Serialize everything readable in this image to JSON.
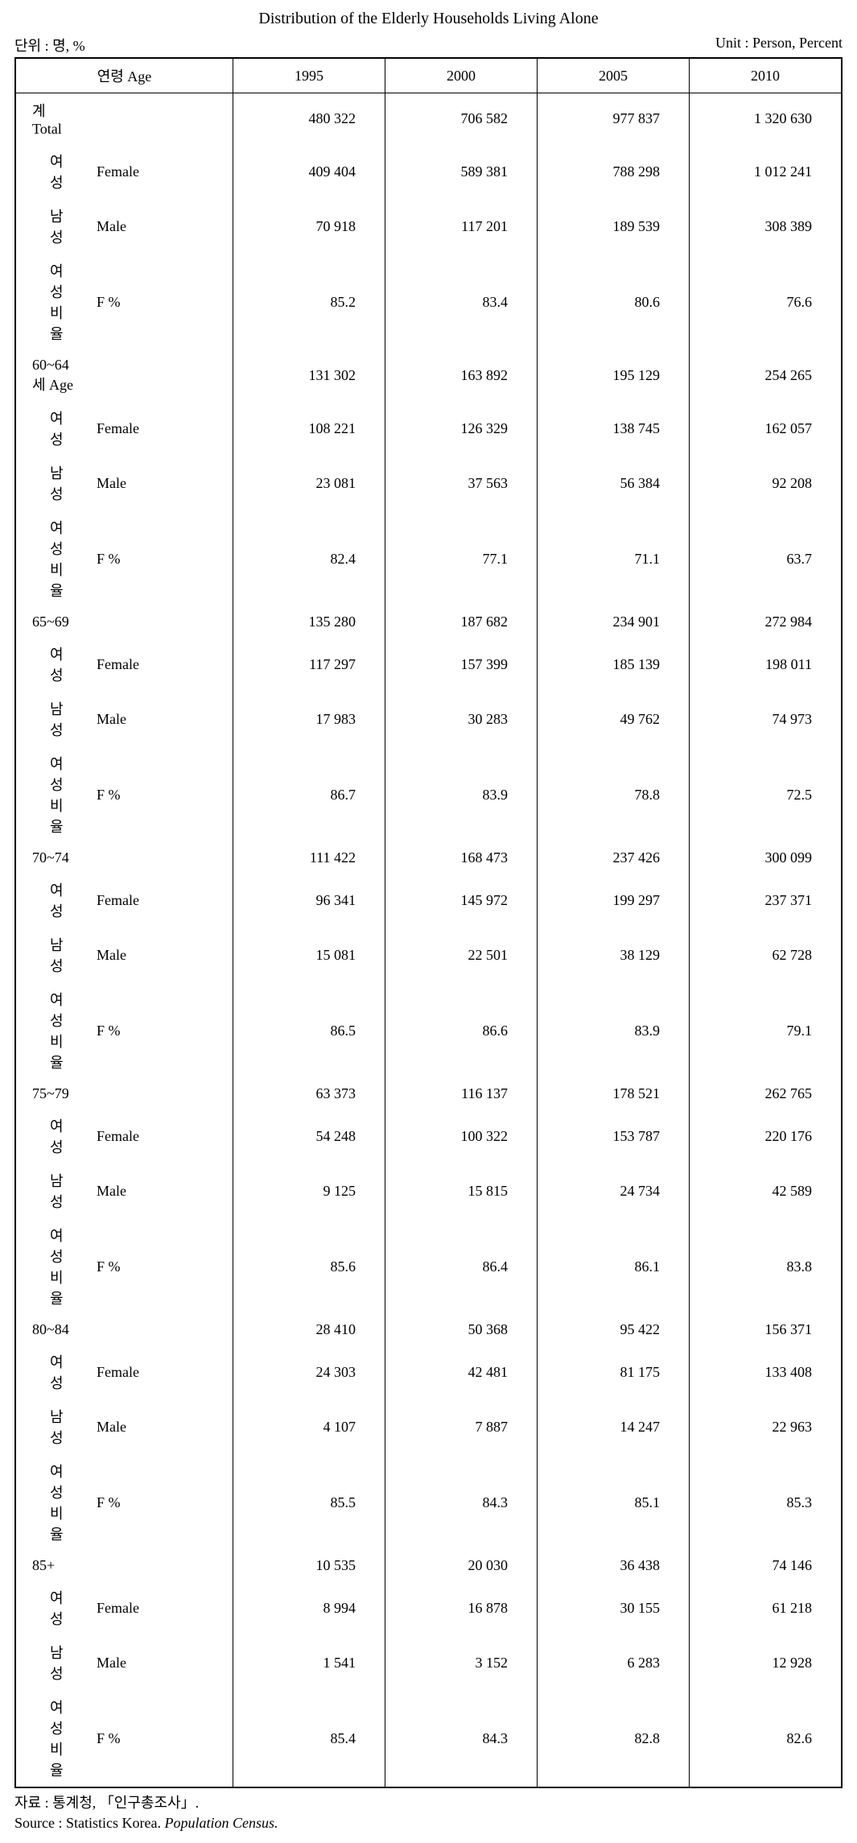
{
  "title": "Distribution of the Elderly Households Living Alone",
  "unit_left": "단위 : 명, %",
  "unit_right": "Unit : Person, Percent",
  "table": {
    "columns": {
      "age_header": "연령 Age",
      "years": [
        "1995",
        "2000",
        "2005",
        "2010"
      ]
    },
    "groups": [
      {
        "label_ko": "계 Total",
        "label_en": "",
        "totals": [
          "480 322",
          "706 582",
          "977 837",
          "1 320 630"
        ],
        "rows": [
          {
            "ko": "여성",
            "en": "Female",
            "vals": [
              "409 404",
              "589 381",
              "788 298",
              "1 012 241"
            ]
          },
          {
            "ko": "남성",
            "en": "Male",
            "vals": [
              "70 918",
              "117 201",
              "189 539",
              "308 389"
            ]
          },
          {
            "ko": "여성비율",
            "en": "F %",
            "vals": [
              "85.2",
              "83.4",
              "80.6",
              "76.6"
            ]
          }
        ]
      },
      {
        "label_ko": "60~64 세 Age",
        "label_en": "",
        "totals": [
          "131 302",
          "163 892",
          "195 129",
          "254 265"
        ],
        "rows": [
          {
            "ko": "여성",
            "en": "Female",
            "vals": [
              "108 221",
              "126 329",
              "138 745",
              "162 057"
            ]
          },
          {
            "ko": "남성",
            "en": "Male",
            "vals": [
              "23 081",
              "37 563",
              "56 384",
              "92 208"
            ]
          },
          {
            "ko": "여성비율",
            "en": "F %",
            "vals": [
              "82.4",
              "77.1",
              "71.1",
              "63.7"
            ]
          }
        ]
      },
      {
        "label_ko": "65~69",
        "label_en": "",
        "totals": [
          "135 280",
          "187 682",
          "234 901",
          "272 984"
        ],
        "rows": [
          {
            "ko": "여성",
            "en": "Female",
            "vals": [
              "117 297",
              "157 399",
              "185 139",
              "198 011"
            ]
          },
          {
            "ko": "남성",
            "en": "Male",
            "vals": [
              "17 983",
              "30 283",
              "49 762",
              "74 973"
            ]
          },
          {
            "ko": "여성비율",
            "en": "F %",
            "vals": [
              "86.7",
              "83.9",
              "78.8",
              "72.5"
            ]
          }
        ]
      },
      {
        "label_ko": "70~74",
        "label_en": "",
        "totals": [
          "111 422",
          "168 473",
          "237 426",
          "300 099"
        ],
        "rows": [
          {
            "ko": "여성",
            "en": "Female",
            "vals": [
              "96 341",
              "145 972",
              "199 297",
              "237 371"
            ]
          },
          {
            "ko": "남성",
            "en": "Male",
            "vals": [
              "15 081",
              "22 501",
              "38 129",
              "62 728"
            ]
          },
          {
            "ko": "여성비율",
            "en": "F %",
            "vals": [
              "86.5",
              "86.6",
              "83.9",
              "79.1"
            ]
          }
        ]
      },
      {
        "label_ko": "75~79",
        "label_en": "",
        "totals": [
          "63 373",
          "116 137",
          "178 521",
          "262 765"
        ],
        "rows": [
          {
            "ko": "여성",
            "en": "Female",
            "vals": [
              "54 248",
              "100 322",
              "153 787",
              "220 176"
            ]
          },
          {
            "ko": "남성",
            "en": "Male",
            "vals": [
              "9 125",
              "15 815",
              "24 734",
              "42 589"
            ]
          },
          {
            "ko": "여성비율",
            "en": "F %",
            "vals": [
              "85.6",
              "86.4",
              "86.1",
              "83.8"
            ]
          }
        ]
      },
      {
        "label_ko": "80~84",
        "label_en": "",
        "totals": [
          "28 410",
          "50 368",
          "95 422",
          "156 371"
        ],
        "rows": [
          {
            "ko": "여성",
            "en": "Female",
            "vals": [
              "24 303",
              "42 481",
              "81 175",
              "133 408"
            ]
          },
          {
            "ko": "남성",
            "en": "Male",
            "vals": [
              "4 107",
              "7 887",
              "14 247",
              "22 963"
            ]
          },
          {
            "ko": "여성비율",
            "en": "F %",
            "vals": [
              "85.5",
              "84.3",
              "85.1",
              "85.3"
            ]
          }
        ]
      },
      {
        "label_ko": "85+",
        "label_en": "",
        "totals": [
          "10 535",
          "20 030",
          "36 438",
          "74 146"
        ],
        "rows": [
          {
            "ko": "여성",
            "en": "Female",
            "vals": [
              "8 994",
              "16 878",
              "30 155",
              "61 218"
            ]
          },
          {
            "ko": "남성",
            "en": "Male",
            "vals": [
              "1 541",
              "3 152",
              "6 283",
              "12 928"
            ]
          },
          {
            "ko": "여성비율",
            "en": "F %",
            "vals": [
              "85.4",
              "84.3",
              "82.8",
              "82.6"
            ]
          }
        ]
      }
    ]
  },
  "sources": {
    "line1_label": "자료   :  ",
    "line1_text": "통계청, 「인구총조사」.",
    "line2_label": "Source :  ",
    "line2_text": "Statistics Korea. ",
    "line2_italic": "Population Census."
  }
}
